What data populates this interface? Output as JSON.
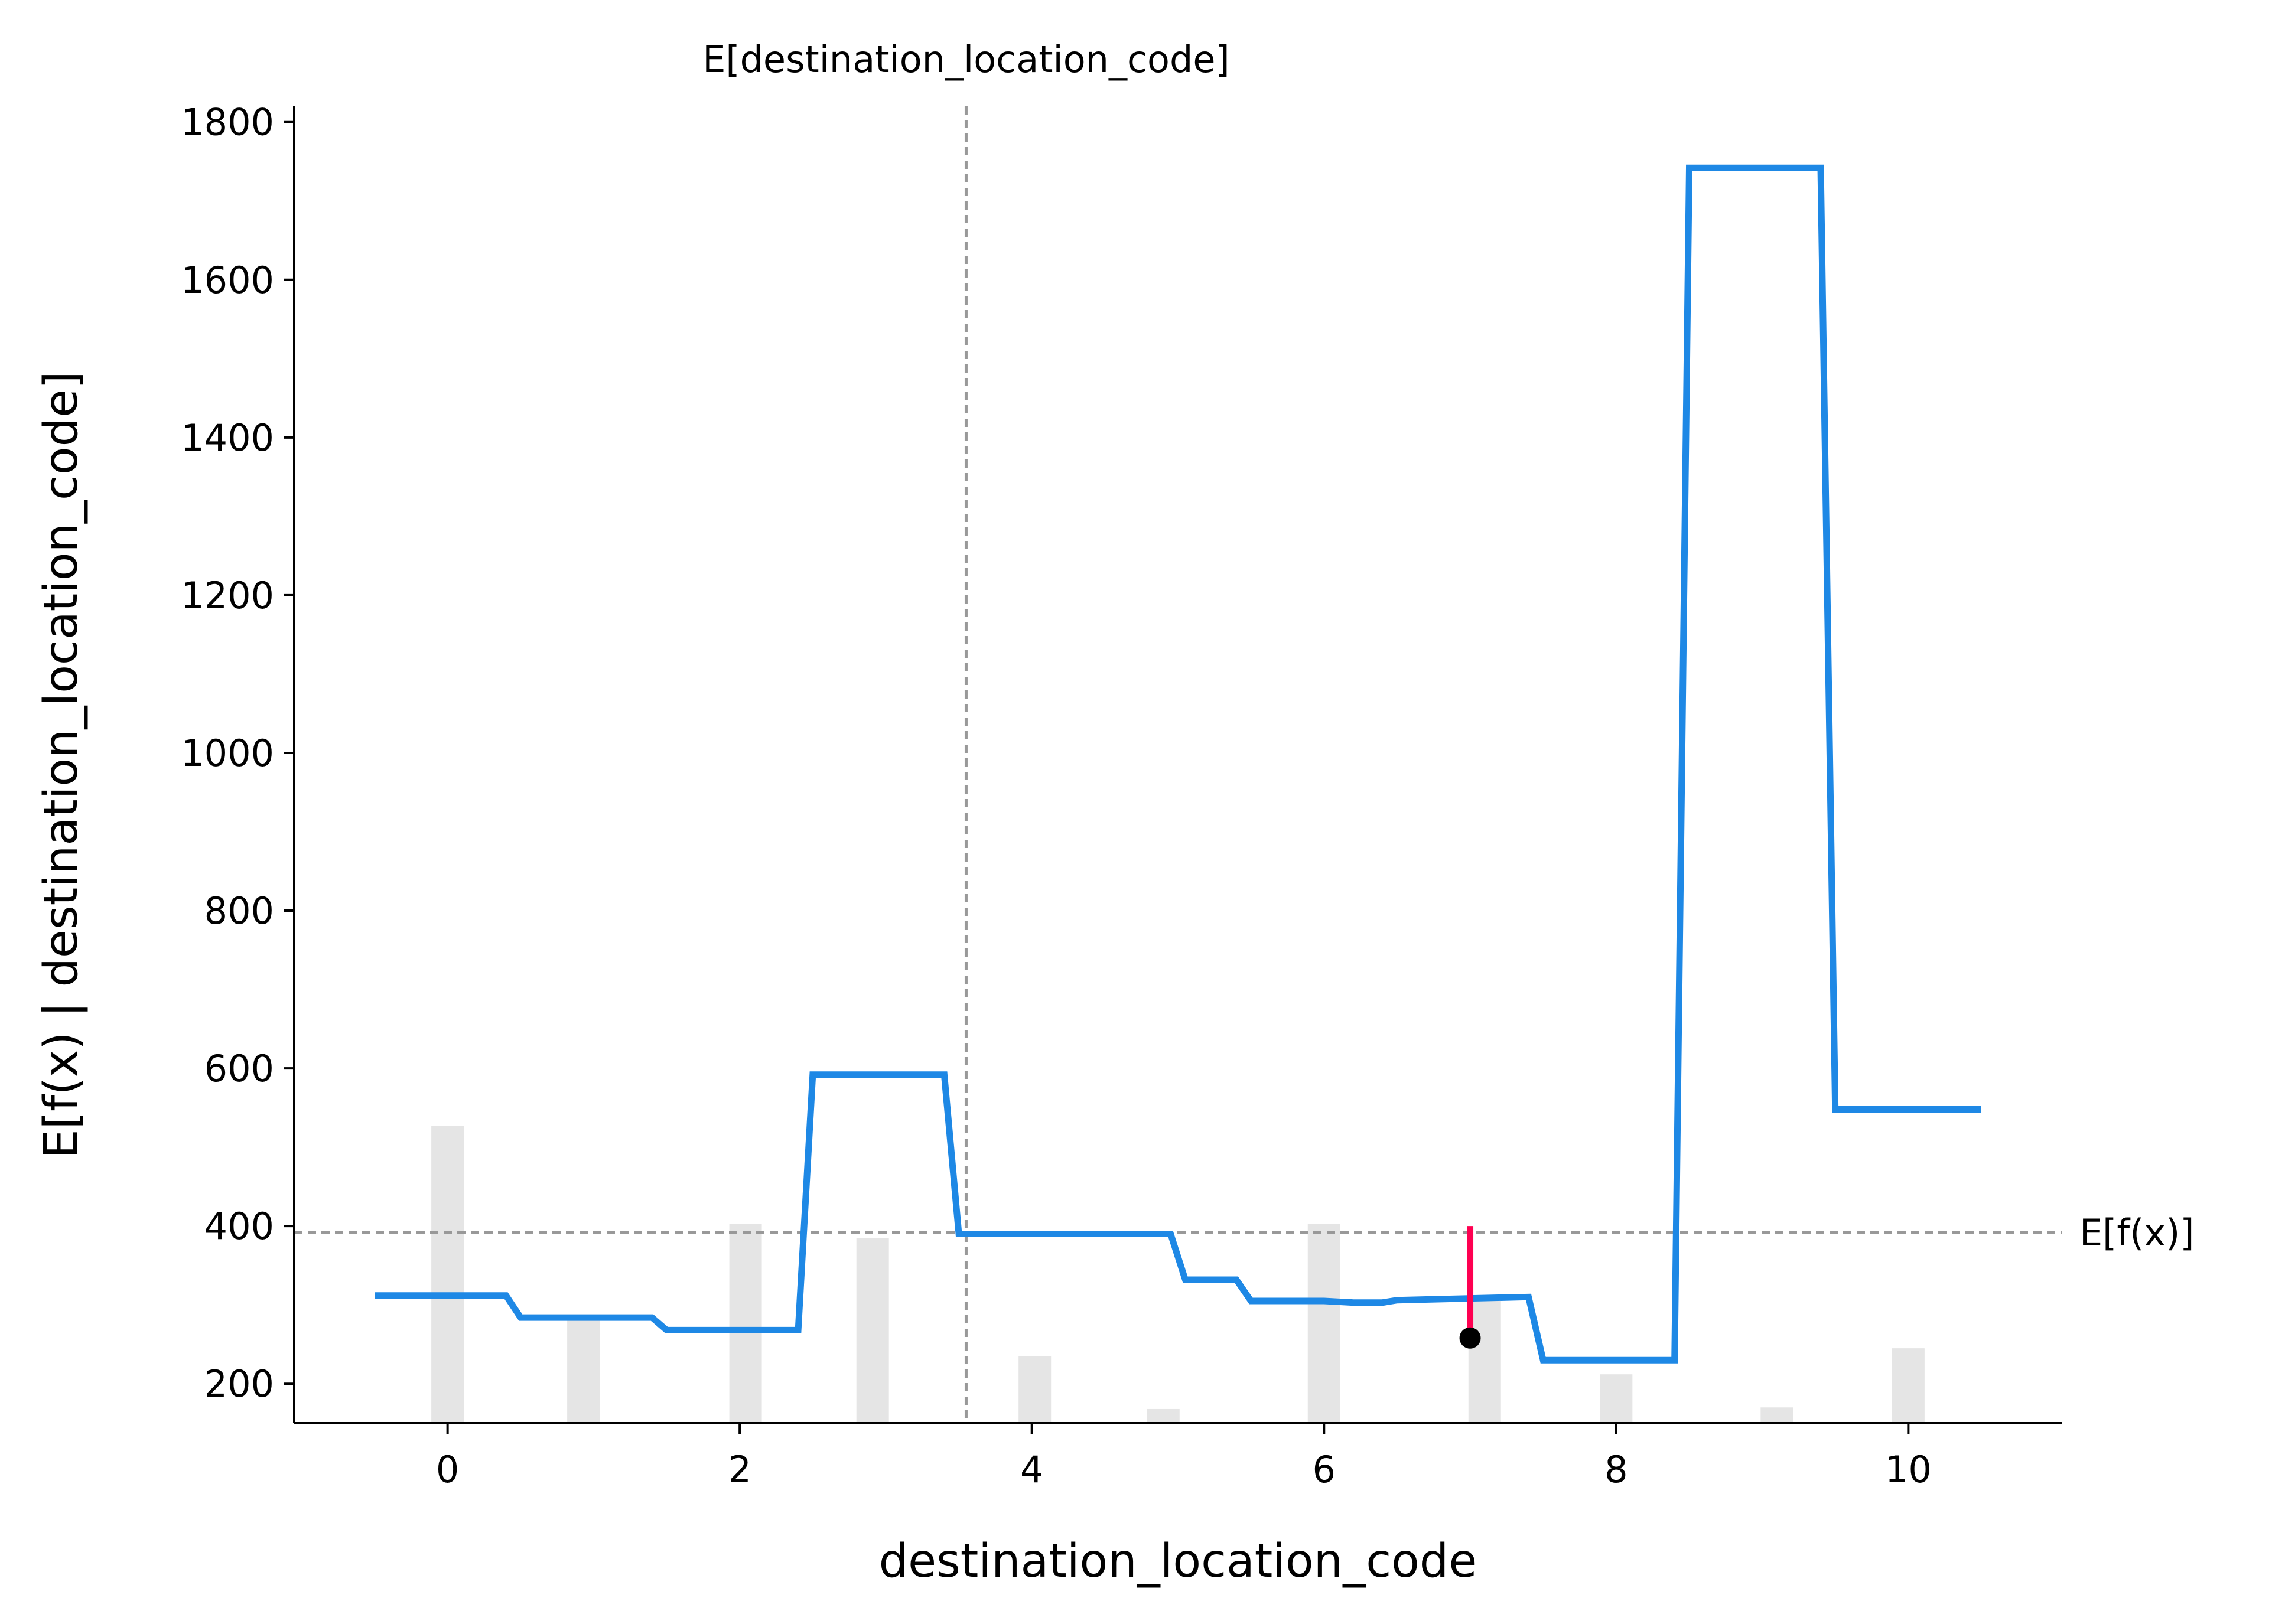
{
  "chart_data": {
    "type": "line",
    "title": "",
    "xlabel": "destination_location_code",
    "ylabel": "E[f(x) | destination_location_code]",
    "xlim": [
      -1.05,
      11.05
    ],
    "ylim": [
      150,
      1820
    ],
    "x_ticks": [
      0,
      2,
      4,
      6,
      8,
      10
    ],
    "y_ticks": [
      200,
      400,
      600,
      800,
      1000,
      1200,
      1400,
      1600,
      1800
    ],
    "grid": false,
    "colors": {
      "line": "#1E88E5",
      "instance": "#FF0051",
      "histogram": "#E5E5E5",
      "reference": "#999999",
      "point": "#000000"
    },
    "series": [
      {
        "x": [
          -0.5,
          0.4,
          0.5,
          1.4,
          1.5,
          2.4,
          2.5,
          3.4,
          3.5,
          4.4,
          4.5,
          4.95,
          5.05,
          5.4,
          5.5,
          6.0,
          6.2,
          6.4,
          6.5,
          7.4,
          7.5,
          8.4,
          8.5,
          9.4,
          9.5,
          10.5
        ],
        "y": [
          312,
          312,
          284,
          284,
          268,
          268,
          592,
          592,
          390,
          390,
          390,
          390,
          332,
          332,
          305,
          305,
          303,
          303,
          306,
          310,
          230,
          230,
          1742,
          1742,
          548,
          548
        ]
      }
    ],
    "histogram": {
      "x": [
        0,
        0.93,
        2.04,
        2.91,
        4.02,
        4.9,
        6.0,
        7.1,
        8.0,
        9.1,
        10.0
      ],
      "heights": [
        527,
        285,
        403,
        385,
        235,
        168,
        403,
        305,
        212,
        170,
        245
      ]
    },
    "reference_lines": [
      {
        "axis": "x",
        "value": 3.55,
        "label": "E[destination_location_code]"
      },
      {
        "axis": "y",
        "value": 392,
        "label": "E[f(x)]"
      }
    ],
    "instance": {
      "x": 7.0,
      "y": 258,
      "y_ref": 400
    }
  }
}
